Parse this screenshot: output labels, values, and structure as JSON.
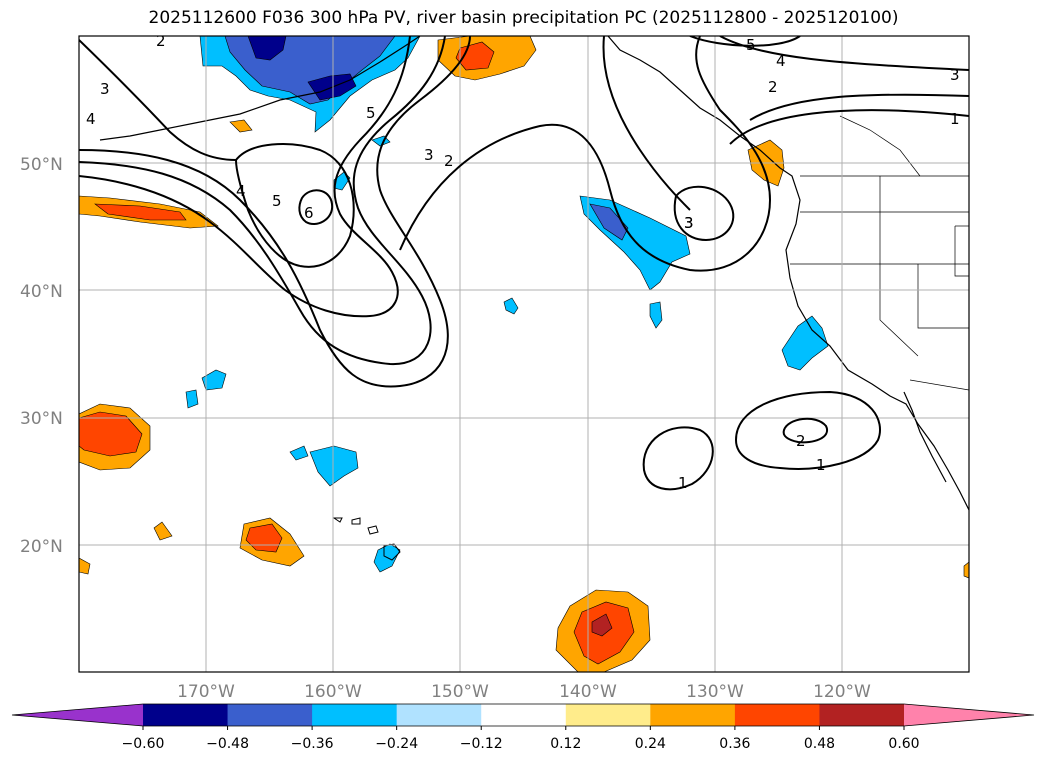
{
  "title": "2025112600 F036 300 hPa PV, river basin precipitation PC (2025112800 - 2025120100)",
  "map": {
    "projection": "equirectangular",
    "lon_range": [
      -180,
      -110
    ],
    "lat_range": [
      10,
      60
    ],
    "gridlines": true,
    "lat_labels": [
      "50°N",
      "40°N",
      "30°N",
      "20°N"
    ],
    "lon_labels": [
      "170°W",
      "160°W",
      "150°W",
      "140°W",
      "130°W",
      "120°W"
    ],
    "contour_labels": [
      "2",
      "3",
      "4",
      "5",
      "3",
      "5",
      "4",
      "6",
      "3",
      "2",
      "5",
      "4",
      "3",
      "2",
      "1",
      "3",
      "1",
      "2",
      "1"
    ],
    "contour_levels": [
      1,
      2,
      3,
      4,
      5,
      6
    ]
  },
  "colorbar": {
    "tick_labels": [
      "−0.60",
      "−0.48",
      "−0.36",
      "−0.24",
      "−0.12",
      "0.12",
      "0.24",
      "0.36",
      "0.48",
      "0.60"
    ],
    "colors": [
      "#9932cc",
      "#00008b",
      "#3a5fcd",
      "#00bfff",
      "#b0e2ff",
      "#ffffff",
      "#ffec8b",
      "#ffa500",
      "#ff4500",
      "#b22222",
      "#ff82ab"
    ],
    "extend": "both"
  }
}
